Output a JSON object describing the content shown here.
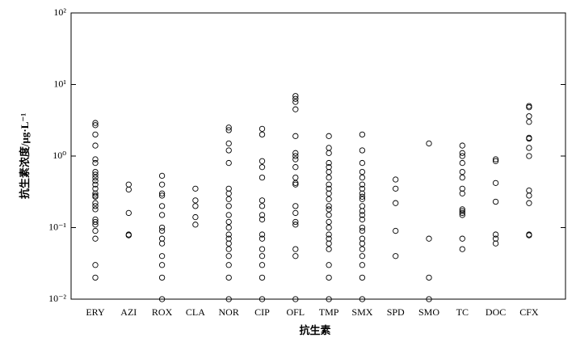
{
  "chart_data": {
    "type": "strip",
    "y_label": "抗生素浓度/μg·L⁻¹",
    "x_label": "抗生素",
    "categories": [
      "ERY",
      "AZI",
      "ROX",
      "CLA",
      "NOR",
      "CIP",
      "OFL",
      "TMP",
      "SMX",
      "SPD",
      "SMO",
      "TC",
      "DOC",
      "CFX"
    ],
    "values": [
      [
        2.9,
        2.7,
        2.0,
        1.4,
        0.9,
        0.8,
        0.6,
        0.55,
        0.5,
        0.45,
        0.4,
        0.35,
        0.3,
        0.28,
        0.27,
        0.22,
        0.2,
        0.18,
        0.13,
        0.12,
        0.11,
        0.09,
        0.07,
        0.03,
        0.02
      ],
      [
        0.4,
        0.34,
        0.16,
        0.08,
        0.078
      ],
      [
        0.53,
        0.4,
        0.3,
        0.28,
        0.2,
        0.15,
        0.1,
        0.09,
        0.07,
        0.06,
        0.04,
        0.03,
        0.02,
        0.01
      ],
      [
        0.35,
        0.24,
        0.2,
        0.14,
        0.11
      ],
      [
        2.5,
        2.3,
        1.5,
        1.2,
        0.8,
        0.35,
        0.3,
        0.25,
        0.2,
        0.15,
        0.12,
        0.1,
        0.08,
        0.07,
        0.06,
        0.05,
        0.04,
        0.03,
        0.02,
        0.01
      ],
      [
        2.4,
        2.0,
        0.85,
        0.7,
        0.5,
        0.24,
        0.2,
        0.15,
        0.13,
        0.08,
        0.07,
        0.05,
        0.04,
        0.03,
        0.02,
        0.01
      ],
      [
        6.9,
        6.3,
        5.7,
        4.5,
        1.9,
        1.1,
        1.0,
        0.9,
        0.7,
        0.5,
        0.42,
        0.4,
        0.2,
        0.16,
        0.12,
        0.11,
        0.05,
        0.04,
        0.01
      ],
      [
        1.9,
        1.3,
        1.1,
        0.8,
        0.7,
        0.6,
        0.5,
        0.4,
        0.35,
        0.3,
        0.25,
        0.2,
        0.18,
        0.15,
        0.12,
        0.1,
        0.08,
        0.07,
        0.06,
        0.05,
        0.03,
        0.02,
        0.01
      ],
      [
        2.0,
        1.2,
        0.8,
        0.6,
        0.5,
        0.4,
        0.35,
        0.3,
        0.27,
        0.25,
        0.2,
        0.17,
        0.15,
        0.13,
        0.1,
        0.09,
        0.07,
        0.06,
        0.05,
        0.04,
        0.03,
        0.02,
        0.01
      ],
      [
        0.47,
        0.35,
        0.22,
        0.09,
        0.04
      ],
      [
        1.5,
        0.07,
        0.02,
        0.01
      ],
      [
        1.4,
        1.1,
        1.0,
        0.8,
        0.6,
        0.5,
        0.35,
        0.3,
        0.18,
        0.17,
        0.16,
        0.15,
        0.07,
        0.05
      ],
      [
        0.9,
        0.85,
        0.42,
        0.23,
        0.08,
        0.07,
        0.06
      ],
      [
        5.0,
        4.8,
        3.6,
        3.0,
        1.8,
        1.75,
        1.3,
        1.0,
        0.33,
        0.28,
        0.22,
        0.08,
        0.078
      ]
    ],
    "log_y": true,
    "ylim": [
      0.01,
      100
    ],
    "yticks": [
      {
        "value": 0.01,
        "label": "10⁻²"
      },
      {
        "value": 0.1,
        "label": "10⁻¹"
      },
      {
        "value": 1,
        "label": "10⁰"
      },
      {
        "value": 10,
        "label": "10¹"
      },
      {
        "value": 100,
        "label": "10²"
      }
    ],
    "marker": "open-circle",
    "color": "#000000"
  }
}
